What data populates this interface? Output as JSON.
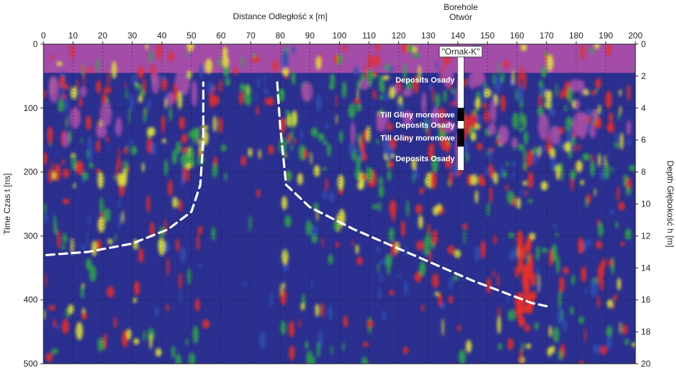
{
  "chart_data": {
    "type": "heatmap",
    "xlabel": "Distance Odległość  x [m]",
    "ylabel_left": "Time Czas  t [ns]",
    "ylabel_right": "Depth Głębokość  h [m]",
    "x_range": [
      0,
      200
    ],
    "t_range": [
      0,
      500
    ],
    "depth_range": [
      0,
      20
    ],
    "x_ticks": [
      "0",
      "10",
      "20",
      "30",
      "40",
      "50",
      "60",
      "70",
      "80",
      "90",
      "100",
      "110",
      "120",
      "130",
      "140",
      "150",
      "160",
      "170",
      "180",
      "190",
      "200"
    ],
    "t_ticks": [
      "0",
      "100",
      "200",
      "300",
      "400",
      "500"
    ],
    "depth_ticks": [
      "0",
      "2",
      "4",
      "6",
      "8",
      "10",
      "12",
      "14",
      "16",
      "18",
      "20"
    ],
    "grid": true,
    "colors": {
      "background": "#2b2f8f",
      "low": "#1d2a8a",
      "mid_low": "#3050b0",
      "mid": "#2fa84a",
      "mid_high": "#e8e83a",
      "high": "#e8302a",
      "top_band": "#a34ca8"
    },
    "borehole": {
      "title_line1": "Borehole",
      "title_line2": "Otwór",
      "name": "\"Ornak-K\"",
      "x": 141,
      "layers": [
        {
          "label": "Deposits Osady",
          "top_depth": 0,
          "bottom_depth": 4,
          "type": "deposits"
        },
        {
          "label": "Till Gliny morenowe",
          "top_depth": 4,
          "bottom_depth": 4.8,
          "type": "till"
        },
        {
          "label": "Deposits Osady",
          "top_depth": 4.8,
          "bottom_depth": 5.3,
          "type": "deposits"
        },
        {
          "label": "Till Gliny morenowe",
          "top_depth": 5.3,
          "bottom_depth": 6.4,
          "type": "till"
        },
        {
          "label": "Deposits Osady",
          "top_depth": 6.4,
          "bottom_depth": 7.9,
          "type": "deposits"
        }
      ]
    },
    "boundaries": [
      {
        "points": [
          [
            1,
            330
          ],
          [
            15,
            325
          ],
          [
            30,
            312
          ],
          [
            42,
            290
          ],
          [
            50,
            262
          ],
          [
            53,
            220
          ],
          [
            54,
            150
          ],
          [
            54,
            60
          ]
        ]
      },
      {
        "points": [
          [
            79,
            60
          ],
          [
            80,
            130
          ],
          [
            82,
            220
          ],
          [
            90,
            255
          ],
          [
            105,
            290
          ],
          [
            125,
            330
          ],
          [
            145,
            370
          ],
          [
            165,
            405
          ],
          [
            170,
            410
          ]
        ]
      }
    ]
  }
}
